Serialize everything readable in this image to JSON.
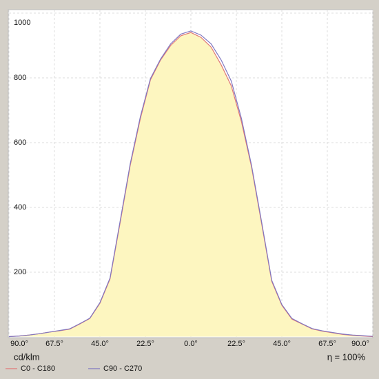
{
  "chart_data": {
    "type": "line",
    "y_unit": "cd/klm",
    "efficiency": "η = 100%",
    "x": [
      -90,
      -85,
      -80,
      -75,
      -70,
      -65,
      -60,
      -55,
      -50,
      -45,
      -40,
      -35,
      -30,
      -25,
      -20,
      -15,
      -10,
      -5,
      0,
      5,
      10,
      15,
      20,
      25,
      30,
      35,
      40,
      45,
      50,
      55,
      60,
      65,
      70,
      75,
      80,
      85,
      90
    ],
    "series": [
      {
        "name": "C0 - C180",
        "color": "#e07878",
        "values": [
          1,
          3,
          6,
          10,
          15,
          19,
          24,
          40,
          57,
          104,
          179,
          353,
          530,
          674,
          794,
          855,
          900,
          930,
          940,
          925,
          895,
          840,
          775,
          665,
          525,
          350,
          172,
          98,
          55,
          40,
          25,
          18,
          13,
          8,
          5,
          3,
          1
        ]
      },
      {
        "name": "C90 - C270",
        "color": "#8078c0",
        "values": [
          1,
          3,
          6,
          10,
          15,
          20,
          25,
          41,
          58,
          106,
          182,
          358,
          535,
          680,
          798,
          858,
          905,
          935,
          945,
          932,
          905,
          855,
          790,
          675,
          530,
          355,
          175,
          100,
          57,
          41,
          26,
          19,
          14,
          9,
          6,
          4,
          2
        ]
      }
    ],
    "area_color": "#fdf6c0",
    "xlim": [
      -90,
      90
    ],
    "xticks": [
      {
        "value": -90,
        "label": "90.0°"
      },
      {
        "value": -67.5,
        "label": "67.5°"
      },
      {
        "value": -45,
        "label": "45.0°"
      },
      {
        "value": -22.5,
        "label": "22.5°"
      },
      {
        "value": 0,
        "label": "0.0°"
      },
      {
        "value": 22.5,
        "label": "22.5°"
      },
      {
        "value": 45,
        "label": "45.0°"
      },
      {
        "value": 67.5,
        "label": "67.5°"
      },
      {
        "value": 90,
        "label": "90.0°"
      }
    ],
    "ylim": [
      0,
      1000
    ],
    "yticks": [
      200,
      400,
      600,
      800,
      1000
    ],
    "grid": true
  }
}
